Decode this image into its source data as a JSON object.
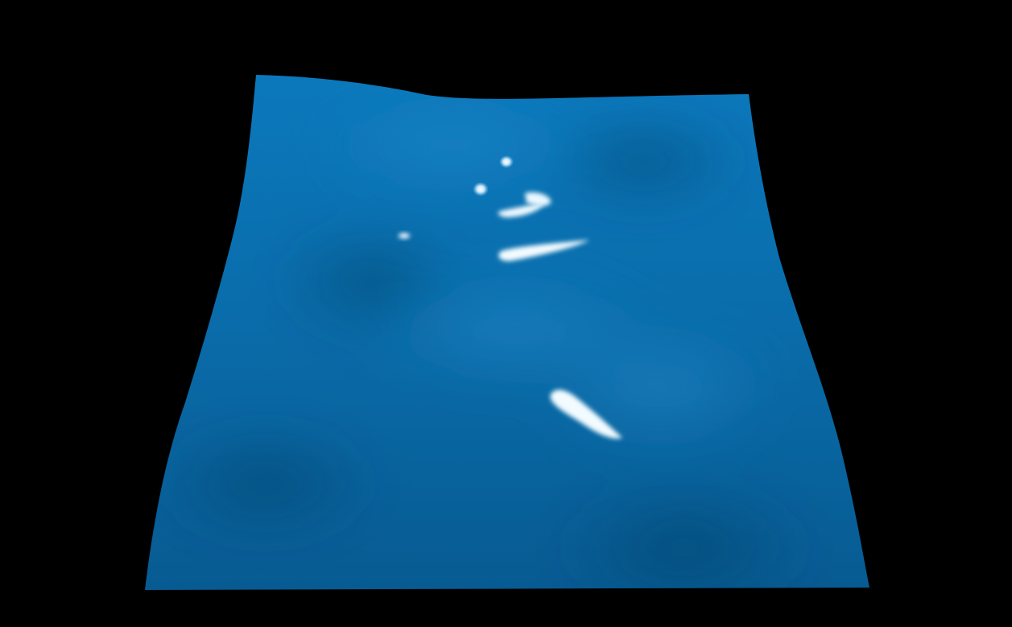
{
  "scene": {
    "subject": "water-surface-mesh",
    "colors": {
      "background": "#000000",
      "surface_base": "#0a6fae",
      "surface_light": "#1b83c4",
      "surface_dark": "#074f80",
      "highlight": "#ffffff"
    },
    "specular_highlights": [
      "highlight-top-dot",
      "highlight-left-dot",
      "highlight-right-curve",
      "highlight-lower-arc",
      "highlight-far-left-dot",
      "highlight-streak",
      "highlight-diagonal-streak"
    ]
  }
}
